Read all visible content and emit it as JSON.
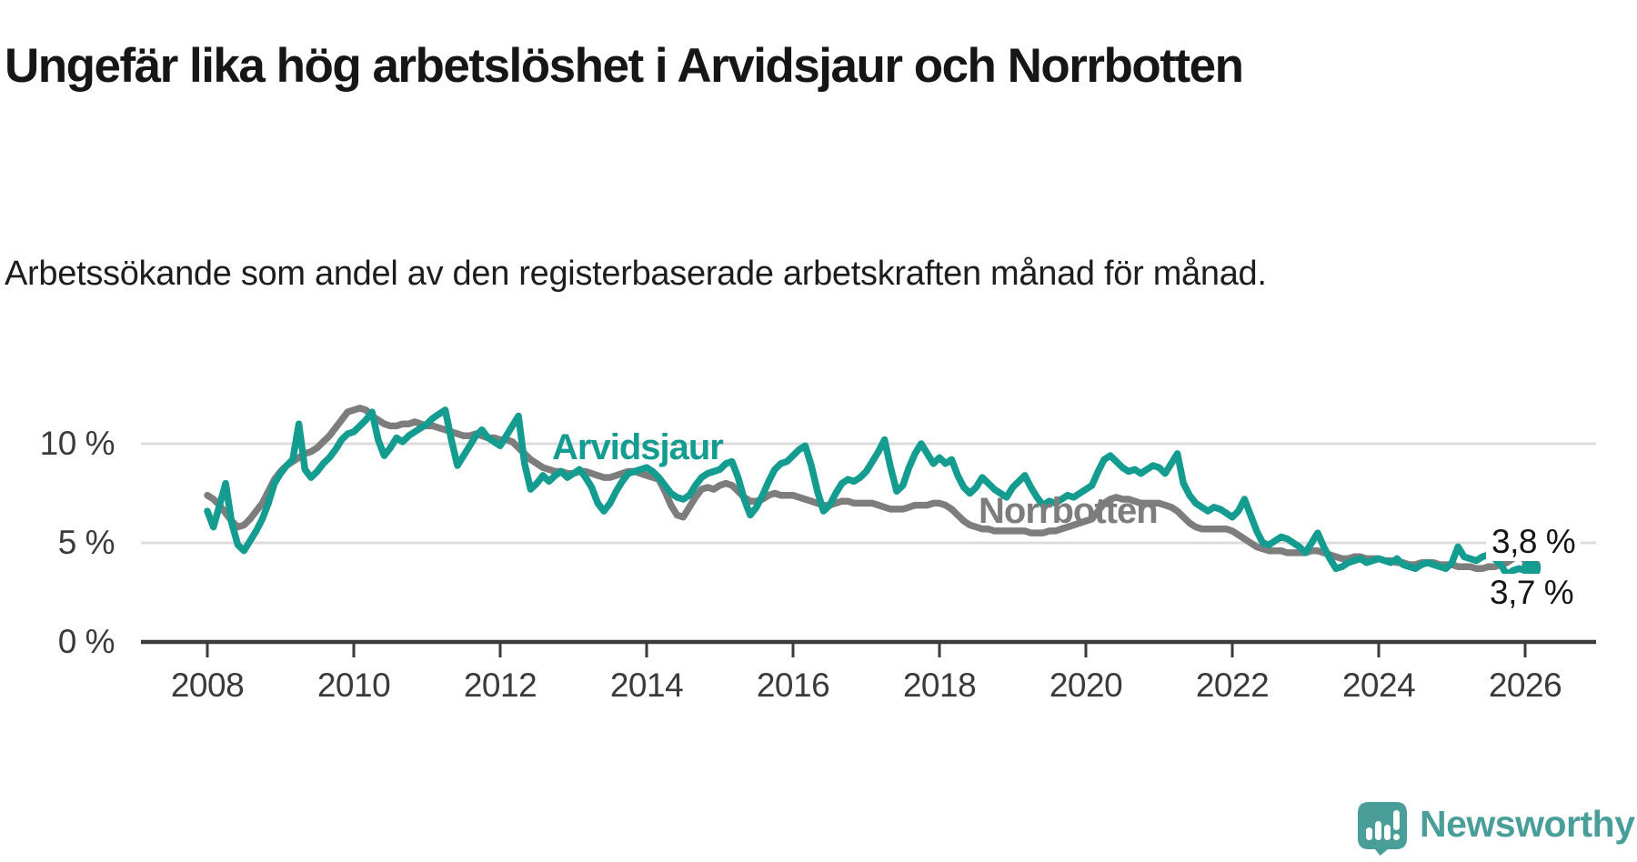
{
  "header": {
    "title": "Ungefär lika hög arbetslöshet i Arvidsjaur och Norrbotten",
    "subtitle": "Arbetssökande som andel av den registerbaserade arbetskraften månad för månad."
  },
  "chart_data": {
    "type": "line",
    "title": "Ungefär lika hög arbetslöshet i Arvidsjaur och Norrbotten",
    "xlabel": "",
    "ylabel": "",
    "unit": "%",
    "grid": true,
    "legend_position": "inline-labels-on-lines",
    "x_axis": {
      "start_year": 2008,
      "start_month": 1,
      "frequency": "monthly",
      "ticks": [
        {
          "year": 2008,
          "label": "2008"
        },
        {
          "year": 2010,
          "label": "2010"
        },
        {
          "year": 2012,
          "label": "2012"
        },
        {
          "year": 2014,
          "label": "2014"
        },
        {
          "year": 2016,
          "label": "2016"
        },
        {
          "year": 2018,
          "label": "2018"
        },
        {
          "year": 2020,
          "label": "2020"
        },
        {
          "year": 2022,
          "label": "2022"
        },
        {
          "year": 2024,
          "label": "2024"
        },
        {
          "year": 2026,
          "label": "2026"
        }
      ]
    },
    "y_axis": {
      "ticks": [
        {
          "value": 0,
          "label": "0 %"
        },
        {
          "value": 5,
          "label": "5 %"
        },
        {
          "value": 10,
          "label": "10 %"
        }
      ],
      "ylim": [
        0,
        15
      ]
    },
    "series": [
      {
        "name": "Norrbotten",
        "color": "#7d7d7d",
        "end_label": "3,8 %",
        "end_value": 3.8,
        "values": [
          7.4,
          7.2,
          6.9,
          6.5,
          6.1,
          5.8,
          5.9,
          6.2,
          6.6,
          7.0,
          7.6,
          8.2,
          8.6,
          8.9,
          9.1,
          9.3,
          9.5,
          9.6,
          9.8,
          10.1,
          10.4,
          10.8,
          11.2,
          11.6,
          11.7,
          11.8,
          11.7,
          11.4,
          11.2,
          11.0,
          10.9,
          10.9,
          11.0,
          11.0,
          11.1,
          11.0,
          10.9,
          10.9,
          10.8,
          10.7,
          10.6,
          10.5,
          10.4,
          10.4,
          10.5,
          10.4,
          10.3,
          10.3,
          10.2,
          10.2,
          10.1,
          9.8,
          9.5,
          9.2,
          9.0,
          8.8,
          8.7,
          8.6,
          8.6,
          8.5,
          8.5,
          8.6,
          8.6,
          8.5,
          8.4,
          8.3,
          8.3,
          8.4,
          8.5,
          8.6,
          8.6,
          8.5,
          8.4,
          8.3,
          8.2,
          7.6,
          6.9,
          6.4,
          6.3,
          6.8,
          7.3,
          7.7,
          7.8,
          7.7,
          7.9,
          8.0,
          7.9,
          7.6,
          7.3,
          7.1,
          7.1,
          7.2,
          7.4,
          7.5,
          7.4,
          7.4,
          7.4,
          7.3,
          7.2,
          7.1,
          7.0,
          6.9,
          6.9,
          7.0,
          7.1,
          7.1,
          7.0,
          7.0,
          7.0,
          7.0,
          6.9,
          6.8,
          6.7,
          6.7,
          6.7,
          6.8,
          6.9,
          6.9,
          6.9,
          7.0,
          7.0,
          6.9,
          6.7,
          6.4,
          6.1,
          5.9,
          5.8,
          5.7,
          5.7,
          5.6,
          5.6,
          5.6,
          5.6,
          5.6,
          5.6,
          5.5,
          5.5,
          5.5,
          5.6,
          5.6,
          5.7,
          5.8,
          5.9,
          6.0,
          6.1,
          6.2,
          6.6,
          7.0,
          7.2,
          7.3,
          7.2,
          7.2,
          7.1,
          7.0,
          7.0,
          7.0,
          7.0,
          6.9,
          6.8,
          6.6,
          6.3,
          6.0,
          5.8,
          5.7,
          5.7,
          5.7,
          5.7,
          5.7,
          5.6,
          5.4,
          5.2,
          5.0,
          4.8,
          4.7,
          4.6,
          4.6,
          4.6,
          4.5,
          4.5,
          4.5,
          4.5,
          4.6,
          4.6,
          4.5,
          4.4,
          4.3,
          4.2,
          4.2,
          4.3,
          4.3,
          4.2,
          4.2,
          4.2,
          4.1,
          4.1,
          4.0,
          4.0,
          3.9,
          3.9,
          4.0,
          4.0,
          4.0,
          3.9,
          3.9,
          3.9,
          3.8,
          3.8,
          3.8,
          3.7,
          3.7,
          3.8,
          3.8,
          3.9,
          4.0,
          4.2,
          4.4,
          4.1,
          3.8
        ]
      },
      {
        "name": "Arvidsjaur",
        "color": "#149c90",
        "end_label": "3,7 %",
        "end_value": 3.7,
        "values": [
          6.6,
          5.8,
          6.9,
          8.0,
          6.0,
          4.9,
          4.6,
          5.1,
          5.6,
          6.2,
          7.0,
          8.0,
          8.5,
          8.9,
          9.2,
          11.0,
          8.7,
          8.3,
          8.6,
          9.0,
          9.3,
          9.7,
          10.2,
          10.5,
          10.6,
          10.9,
          11.2,
          11.6,
          10.2,
          9.4,
          9.8,
          10.3,
          10.1,
          10.4,
          10.6,
          10.8,
          11.0,
          11.3,
          11.5,
          11.7,
          10.2,
          8.9,
          9.4,
          9.9,
          10.4,
          10.7,
          10.3,
          10.1,
          9.9,
          10.4,
          10.9,
          11.4,
          9.0,
          7.7,
          8.0,
          8.4,
          8.1,
          8.4,
          8.6,
          8.3,
          8.5,
          8.7,
          8.3,
          7.8,
          7.0,
          6.6,
          7.0,
          7.6,
          8.1,
          8.5,
          8.6,
          8.7,
          8.8,
          8.6,
          8.3,
          7.9,
          7.5,
          7.3,
          7.2,
          7.4,
          7.9,
          8.3,
          8.5,
          8.6,
          8.7,
          9.0,
          9.1,
          8.3,
          7.2,
          6.4,
          6.8,
          7.4,
          8.1,
          8.7,
          9.0,
          9.1,
          9.4,
          9.7,
          9.9,
          8.9,
          7.6,
          6.6,
          6.9,
          7.5,
          8.0,
          8.2,
          8.1,
          8.3,
          8.6,
          9.1,
          9.6,
          10.2,
          8.8,
          7.6,
          7.9,
          8.8,
          9.5,
          10.0,
          9.5,
          9.0,
          9.3,
          9.0,
          9.2,
          8.4,
          7.8,
          7.5,
          7.8,
          8.3,
          8.0,
          7.7,
          7.5,
          7.3,
          7.8,
          8.1,
          8.4,
          7.8,
          7.3,
          6.9,
          7.1,
          7.0,
          7.2,
          7.4,
          7.3,
          7.5,
          7.7,
          7.9,
          8.6,
          9.2,
          9.4,
          9.1,
          8.8,
          8.6,
          8.7,
          8.5,
          8.7,
          8.9,
          8.8,
          8.5,
          9.0,
          9.5,
          8.0,
          7.4,
          7.0,
          6.8,
          6.6,
          6.8,
          6.7,
          6.5,
          6.3,
          6.6,
          7.2,
          6.4,
          5.6,
          5.0,
          4.9,
          5.1,
          5.3,
          5.2,
          5.0,
          4.8,
          4.5,
          5.0,
          5.5,
          4.8,
          4.2,
          3.7,
          3.8,
          4.0,
          4.1,
          4.2,
          4.0,
          4.1,
          4.2,
          4.1,
          4.0,
          4.2,
          3.9,
          3.8,
          3.7,
          3.9,
          4.0,
          3.9,
          3.8,
          3.7,
          4.0,
          4.8,
          4.3,
          4.2,
          4.1,
          4.3,
          4.4,
          4.2,
          3.9,
          3.4,
          3.6,
          3.7,
          3.6,
          3.7
        ]
      }
    ]
  },
  "colors": {
    "arvidsjaur_line": "#149c90",
    "norrbotten_line": "#7d7d7d",
    "gridline": "#dcdcdc",
    "axis": "#3b3b3b",
    "text": "#161616"
  },
  "footer": {
    "brand": "Newsworthy",
    "brand_color": "#4a9e99",
    "logo_icon": "bar-chart-exclamation-badge-icon"
  }
}
